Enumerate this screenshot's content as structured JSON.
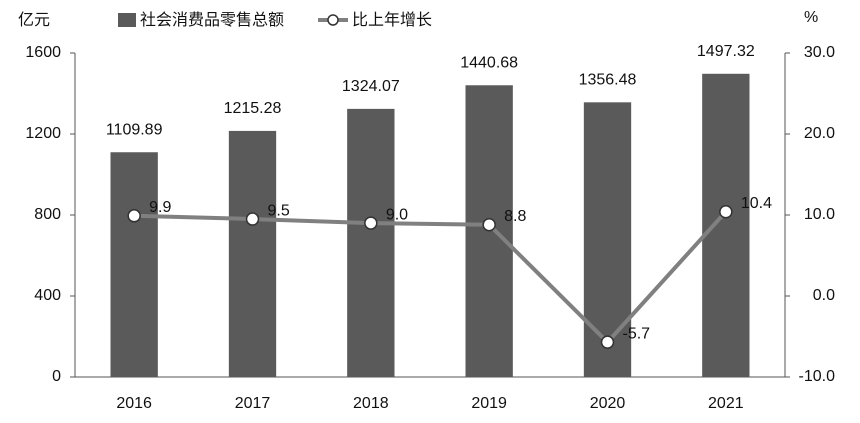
{
  "chart_data": {
    "type": "bar",
    "y_label": "亿元",
    "y2_label": "%",
    "categories": [
      "2016",
      "2017",
      "2018",
      "2019",
      "2020",
      "2021"
    ],
    "series": [
      {
        "name": "社会消费品零售总额",
        "color": "#5a5a5a",
        "values": [
          1109.89,
          1215.28,
          1324.07,
          1440.68,
          1356.48,
          1497.32
        ]
      },
      {
        "name": "比上年增长",
        "type": "line",
        "axis": "y2",
        "color": "#808080",
        "values": [
          9.9,
          9.5,
          9.0,
          8.8,
          -5.7,
          10.4
        ],
        "value_labels": [
          "9.9",
          "9.5",
          "9.0",
          "8.8",
          "-5.7",
          "10.4"
        ]
      }
    ],
    "ylim": [
      0,
      1600
    ],
    "yticks": [
      0,
      400,
      800,
      1200,
      1600
    ],
    "y2lim": [
      -10,
      30
    ],
    "y2ticks": [
      {
        "value": -10,
        "label": "-10.0"
      },
      {
        "value": 0,
        "label": "0.0"
      },
      {
        "value": 10,
        "label": "10.0"
      },
      {
        "value": 20,
        "label": "20.0"
      },
      {
        "value": 30,
        "label": "30.0"
      }
    ],
    "grid": false
  }
}
